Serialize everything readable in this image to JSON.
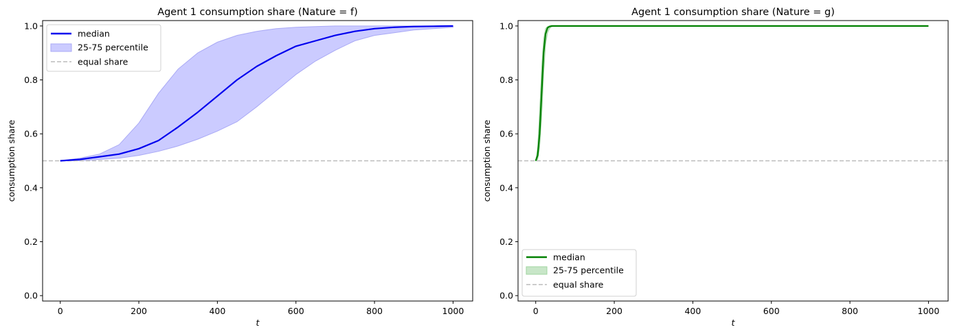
{
  "chart_data": [
    {
      "type": "line",
      "title": "Agent 1 consumption share (Nature = f)",
      "xlabel": "t",
      "ylabel": "consumption share",
      "xlim": [
        -45,
        1050
      ],
      "ylim": [
        -0.02,
        1.02
      ],
      "xticks": [
        0,
        200,
        400,
        600,
        800,
        1000
      ],
      "yticks": [
        0.0,
        0.2,
        0.4,
        0.6,
        0.8,
        1.0
      ],
      "xtick_labels": [
        "0",
        "200",
        "400",
        "600",
        "800",
        "1000"
      ],
      "ytick_labels": [
        "0.0",
        "0.2",
        "0.4",
        "0.6",
        "0.8",
        "1.0"
      ],
      "legend_position": "upper left",
      "grid": false,
      "colors": {
        "median": "#0000ee",
        "band_fill": "#cbcbff",
        "band_edge": "#a9a9f5",
        "equal_share": "#bbbbbb"
      },
      "x": [
        0,
        50,
        100,
        150,
        200,
        250,
        300,
        350,
        400,
        450,
        500,
        550,
        600,
        650,
        700,
        750,
        800,
        850,
        900,
        950,
        1000
      ],
      "series": [
        {
          "name": "median",
          "kind": "line",
          "values": [
            0.5,
            0.505,
            0.515,
            0.525,
            0.545,
            0.575,
            0.625,
            0.68,
            0.74,
            0.8,
            0.85,
            0.89,
            0.925,
            0.945,
            0.965,
            0.98,
            0.99,
            0.995,
            0.998,
            0.999,
            1.0
          ]
        },
        {
          "name": "25-75 percentile",
          "kind": "band",
          "lower": [
            0.5,
            0.5,
            0.505,
            0.51,
            0.52,
            0.535,
            0.555,
            0.58,
            0.61,
            0.645,
            0.7,
            0.76,
            0.82,
            0.87,
            0.91,
            0.945,
            0.965,
            0.975,
            0.985,
            0.99,
            0.995
          ],
          "upper": [
            0.5,
            0.51,
            0.525,
            0.56,
            0.64,
            0.75,
            0.84,
            0.9,
            0.94,
            0.965,
            0.98,
            0.99,
            0.995,
            0.998,
            1.0,
            1.0,
            1.0,
            1.0,
            1.0,
            1.0,
            1.0
          ]
        },
        {
          "name": "equal share",
          "kind": "hline",
          "value": 0.5
        }
      ]
    },
    {
      "type": "line",
      "title": "Agent 1 consumption share (Nature = g)",
      "xlabel": "t",
      "ylabel": "consumption share",
      "xlim": [
        -45,
        1050
      ],
      "ylim": [
        -0.02,
        1.02
      ],
      "xticks": [
        0,
        200,
        400,
        600,
        800,
        1000
      ],
      "yticks": [
        0.0,
        0.2,
        0.4,
        0.6,
        0.8,
        1.0
      ],
      "xtick_labels": [
        "0",
        "200",
        "400",
        "600",
        "800",
        "1000"
      ],
      "ytick_labels": [
        "0.0",
        "0.2",
        "0.4",
        "0.6",
        "0.8",
        "1.0"
      ],
      "legend_position": "lower left",
      "grid": false,
      "colors": {
        "median": "#008000",
        "band_fill": "#c8e6c8",
        "band_edge": "#9fd49f",
        "equal_share": "#bbbbbb"
      },
      "x": [
        0,
        5,
        10,
        15,
        20,
        25,
        30,
        35,
        40,
        50,
        100,
        200,
        400,
        600,
        800,
        1000
      ],
      "series": [
        {
          "name": "median",
          "kind": "line",
          "values": [
            0.5,
            0.52,
            0.6,
            0.75,
            0.9,
            0.97,
            0.993,
            0.998,
            1.0,
            1.0,
            1.0,
            1.0,
            1.0,
            1.0,
            1.0,
            1.0
          ]
        },
        {
          "name": "25-75 percentile",
          "kind": "band",
          "lower": [
            0.5,
            0.505,
            0.55,
            0.66,
            0.82,
            0.93,
            0.975,
            0.99,
            0.997,
            1.0,
            1.0,
            1.0,
            1.0,
            1.0,
            1.0,
            1.0
          ],
          "upper": [
            0.5,
            0.55,
            0.68,
            0.84,
            0.95,
            0.99,
            0.998,
            1.0,
            1.0,
            1.0,
            1.0,
            1.0,
            1.0,
            1.0,
            1.0,
            1.0
          ]
        },
        {
          "name": "equal share",
          "kind": "hline",
          "value": 0.5
        }
      ]
    }
  ]
}
